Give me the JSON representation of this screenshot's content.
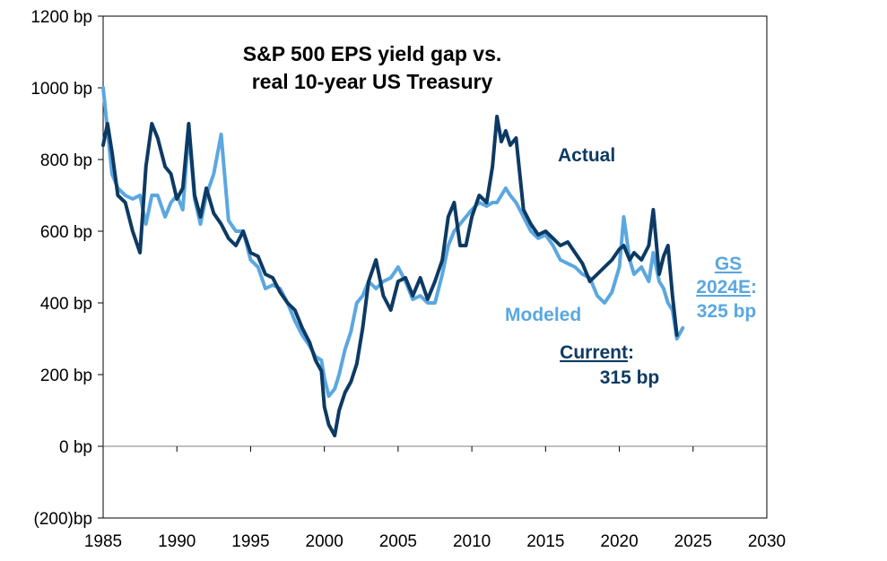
{
  "chart_data": {
    "type": "line",
    "title": [
      "S&P 500 EPS yield gap vs.",
      "real 10-year US Treasury"
    ],
    "xlabel": "",
    "ylabel": "",
    "xlim": [
      1985,
      2030
    ],
    "ylim": [
      -200,
      1200
    ],
    "x_ticks": [
      1985,
      1990,
      1995,
      2000,
      2005,
      2010,
      2015,
      2020,
      2025,
      2030
    ],
    "x_tick_labels": [
      "1985",
      "1990",
      "1995",
      "2000",
      "2005",
      "2010",
      "2015",
      "2020",
      "2025",
      "2030"
    ],
    "y_ticks": [
      1200,
      1000,
      800,
      600,
      400,
      200,
      0,
      -200
    ],
    "y_tick_labels": [
      "1200 bp",
      "1000 bp",
      "800 bp",
      "600 bp",
      "400 bp",
      "200 bp",
      "0 bp",
      "(200)bp"
    ],
    "zero_line": 0,
    "grid": false,
    "colors": {
      "actual": "#0d3a63",
      "modeled": "#5ba7e0",
      "axis": "#000000",
      "zero": "#7f7f7f"
    },
    "series": [
      {
        "name": "Actual",
        "color": "#0d3a63",
        "x": [
          1985,
          1985.3,
          1985.6,
          1986,
          1986.5,
          1987,
          1987.5,
          1987.9,
          1988.3,
          1988.7,
          1989.2,
          1989.6,
          1990,
          1990.4,
          1990.8,
          1991.2,
          1991.6,
          1992,
          1992.5,
          1993,
          1993.5,
          1994,
          1994.5,
          1995,
          1995.5,
          1996,
          1996.5,
          1997,
          1997.5,
          1998,
          1998.5,
          1999,
          1999.4,
          1999.8,
          2000,
          2000.3,
          2000.7,
          2001,
          2001.4,
          2001.8,
          2002.2,
          2002.6,
          2003,
          2003.5,
          2004,
          2004.5,
          2005,
          2005.5,
          2006,
          2006.5,
          2007,
          2007.5,
          2008,
          2008.4,
          2008.8,
          2009.2,
          2009.6,
          2010,
          2010.5,
          2011,
          2011.4,
          2011.7,
          2012,
          2012.3,
          2012.6,
          2013,
          2013.5,
          2014,
          2014.5,
          2015,
          2015.5,
          2016,
          2016.5,
          2017,
          2017.5,
          2018,
          2018.5,
          2019,
          2019.5,
          2020,
          2020.3,
          2020.7,
          2021,
          2021.5,
          2022,
          2022.3,
          2022.7,
          2023,
          2023.3,
          2023.6,
          2023.9
        ],
        "values": [
          840,
          900,
          820,
          700,
          680,
          600,
          540,
          780,
          900,
          860,
          780,
          760,
          690,
          720,
          900,
          700,
          640,
          720,
          650,
          620,
          580,
          560,
          600,
          540,
          530,
          480,
          470,
          430,
          400,
          380,
          330,
          290,
          240,
          210,
          110,
          60,
          30,
          100,
          150,
          180,
          230,
          330,
          460,
          520,
          420,
          380,
          460,
          470,
          420,
          470,
          410,
          460,
          520,
          640,
          680,
          560,
          560,
          640,
          700,
          680,
          780,
          920,
          850,
          880,
          840,
          860,
          660,
          620,
          590,
          600,
          580,
          560,
          570,
          540,
          510,
          460,
          480,
          500,
          520,
          550,
          560,
          520,
          540,
          520,
          560,
          660,
          480,
          530,
          560,
          420,
          310
        ]
      },
      {
        "name": "Modeled",
        "color": "#5ba7e0",
        "x": [
          1985,
          1985.3,
          1985.6,
          1986,
          1986.5,
          1987,
          1987.5,
          1987.9,
          1988.3,
          1988.7,
          1989.2,
          1989.6,
          1990,
          1990.4,
          1990.8,
          1991.2,
          1991.6,
          1992,
          1992.5,
          1993,
          1993.5,
          1994,
          1994.5,
          1995,
          1995.5,
          1996,
          1996.5,
          1997,
          1997.5,
          1998,
          1998.5,
          1999,
          1999.4,
          1999.8,
          2000,
          2000.3,
          2000.7,
          2001,
          2001.4,
          2001.8,
          2002.2,
          2002.6,
          2003,
          2003.5,
          2004,
          2004.5,
          2005,
          2005.5,
          2006,
          2006.5,
          2007,
          2007.5,
          2008,
          2008.4,
          2008.8,
          2009.2,
          2009.6,
          2010,
          2010.5,
          2011,
          2011.4,
          2011.7,
          2012,
          2012.3,
          2012.6,
          2013,
          2013.5,
          2014,
          2014.5,
          2015,
          2015.5,
          2016,
          2016.5,
          2017,
          2017.5,
          2018,
          2018.5,
          2019,
          2019.5,
          2020,
          2020.3,
          2020.7,
          2021,
          2021.5,
          2022,
          2022.3,
          2022.7,
          2023,
          2023.3,
          2023.6,
          2023.9,
          2024.3
        ],
        "values": [
          1000,
          880,
          760,
          720,
          700,
          690,
          700,
          620,
          700,
          700,
          640,
          680,
          700,
          660,
          880,
          690,
          620,
          700,
          760,
          870,
          630,
          600,
          600,
          520,
          500,
          440,
          450,
          440,
          400,
          350,
          310,
          280,
          250,
          240,
          190,
          140,
          160,
          200,
          270,
          320,
          400,
          420,
          460,
          440,
          460,
          470,
          500,
          460,
          410,
          420,
          400,
          400,
          480,
          560,
          600,
          620,
          640,
          660,
          680,
          670,
          680,
          680,
          700,
          720,
          700,
          680,
          640,
          600,
          580,
          590,
          560,
          520,
          510,
          500,
          480,
          470,
          420,
          400,
          430,
          500,
          640,
          520,
          480,
          500,
          460,
          540,
          460,
          440,
          400,
          380,
          300,
          330
        ]
      }
    ],
    "annotations": {
      "actual": "Actual",
      "modeled": "Modeled",
      "current_label": "Current",
      "current_colon": ":",
      "current_value": "315 bp",
      "gs_line1": "GS",
      "gs_line2": "2024E",
      "gs_colon": ":",
      "gs_value": "325 bp"
    }
  }
}
